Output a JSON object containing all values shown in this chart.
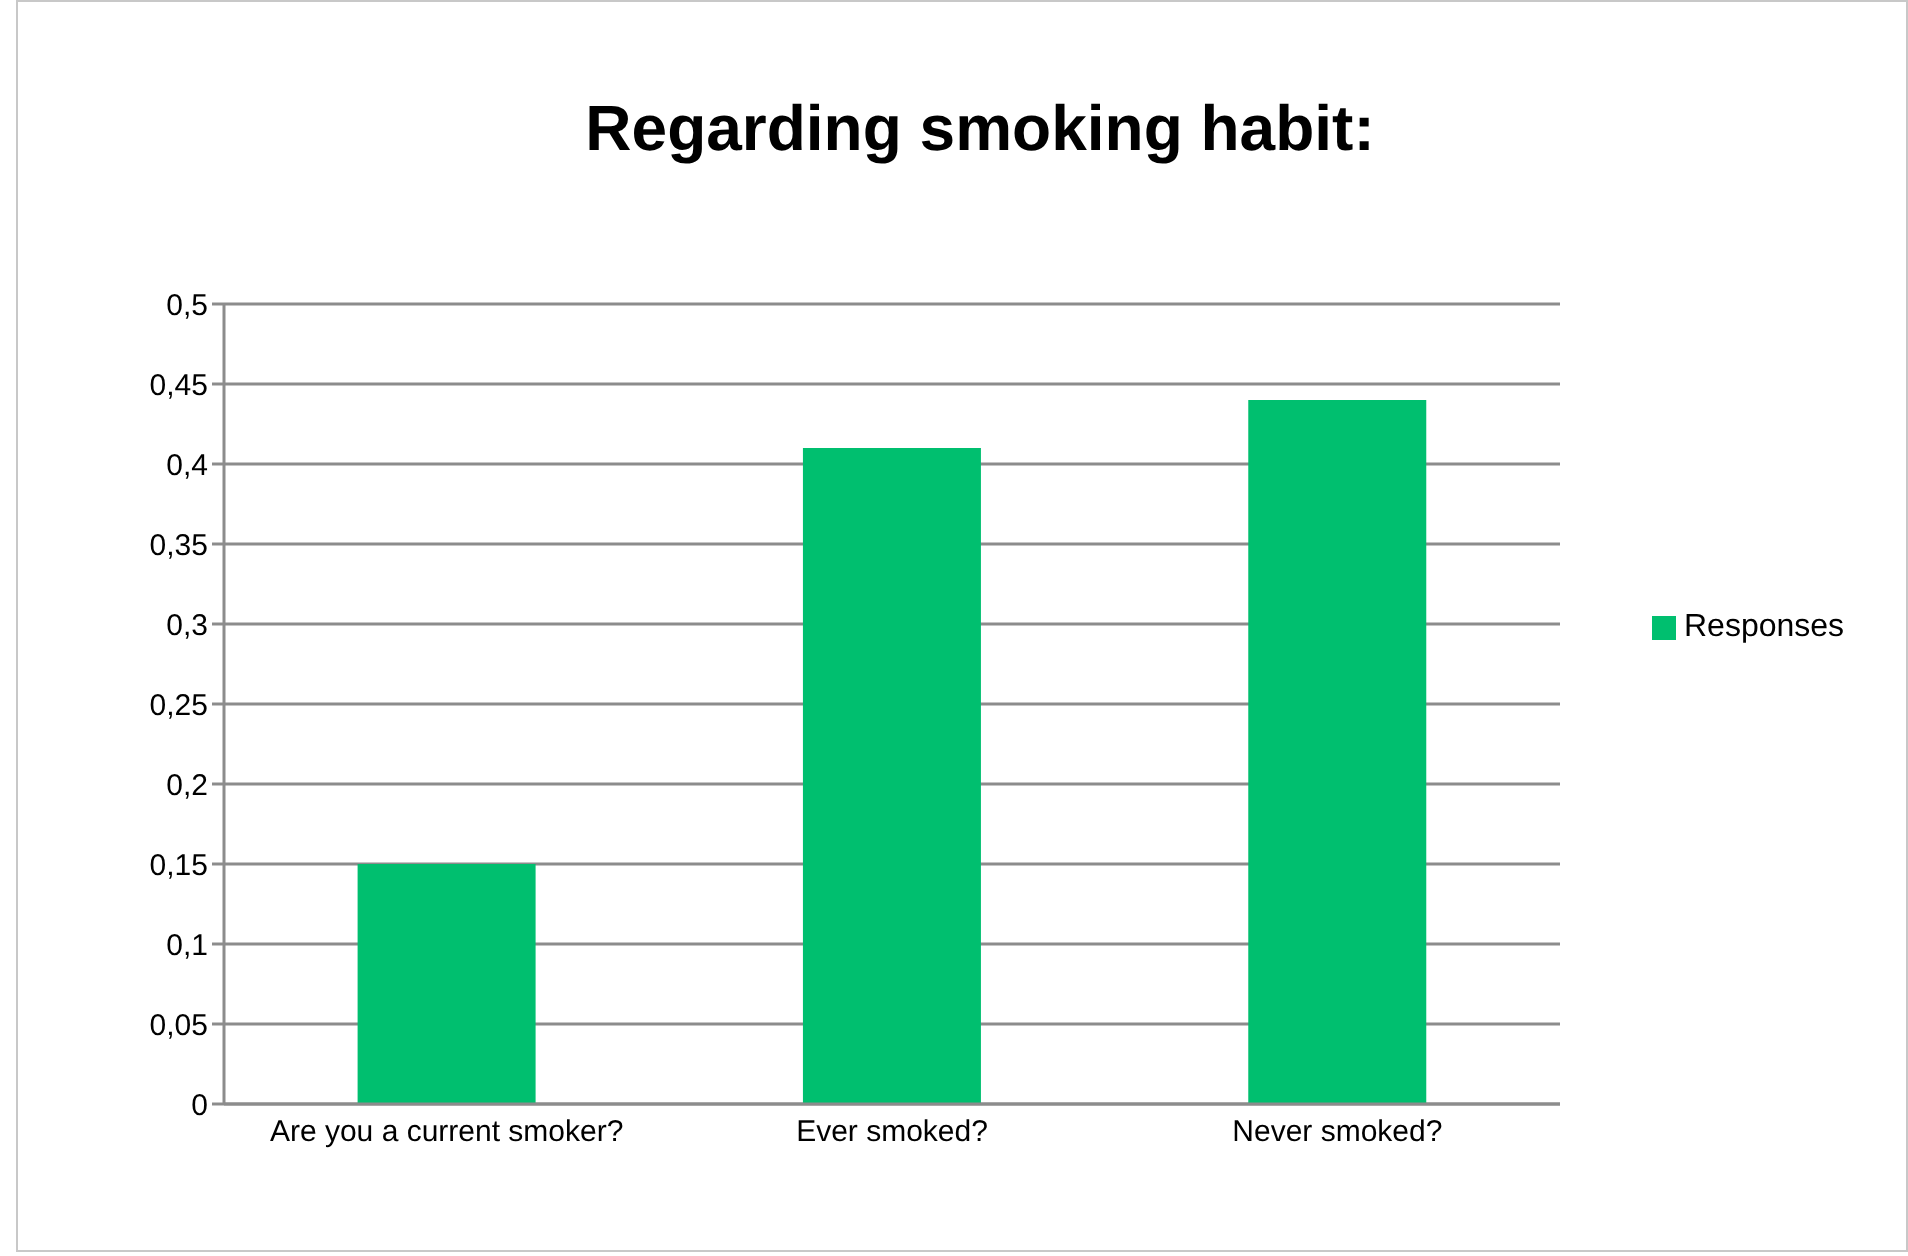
{
  "chart_data": {
    "type": "bar",
    "title": "Regarding smoking habit:",
    "categories": [
      "Are you a current smoker?",
      "Ever smoked?",
      "Never smoked?"
    ],
    "series": [
      {
        "name": "Responses",
        "color": "#00bf6f",
        "values": [
          0.15,
          0.41,
          0.44
        ]
      }
    ],
    "ylim": [
      0,
      0.5
    ],
    "yticks": [
      0,
      {
        "value": 0.05,
        "label": "0,05"
      },
      {
        "value": 0.1,
        "label": "0,1"
      },
      {
        "value": 0.15,
        "label": "0,15"
      },
      {
        "value": 0.2,
        "label": "0,2"
      },
      {
        "value": 0.25,
        "label": "0,25"
      },
      {
        "value": 0.3,
        "label": "0,3"
      },
      {
        "value": 0.35,
        "label": "0,35"
      },
      {
        "value": 0.4,
        "label": "0,4"
      },
      {
        "value": 0.45,
        "label": "0,45"
      },
      {
        "value": 0.5,
        "label": "0,5"
      }
    ],
    "grid": "y",
    "legend": "right"
  }
}
